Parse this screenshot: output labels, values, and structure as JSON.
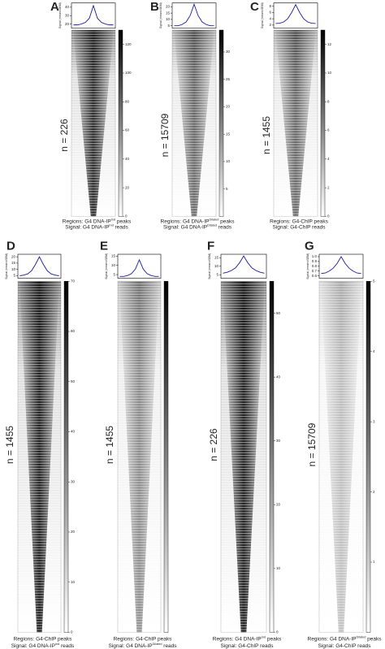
{
  "chart_data": [
    {
      "type": "line",
      "panel": "A",
      "n_label": "n = 226",
      "ylabel": "Signal (mean±SEM)",
      "color": "#1a1a9c",
      "values": [
        19,
        19,
        20,
        22,
        27,
        42,
        27,
        22,
        20,
        19,
        19
      ],
      "ylim": [
        15,
        45
      ],
      "yticks": [
        20,
        30,
        40
      ],
      "colorbar": {
        "clim": [
          0,
          130
        ],
        "ticks": [
          0,
          20,
          40,
          60,
          80,
          100,
          120
        ]
      },
      "regions": [
        "Regions: G4 DNA-IP",
        "Ind",
        " peaks"
      ],
      "signal": [
        "Signal: G4 DNA-IP",
        "Ind",
        " reads"
      ]
    },
    {
      "type": "line",
      "panel": "B",
      "n_label": "n = 15709",
      "ylabel": "Signal (mean±SEM)",
      "color": "#1a1a9c",
      "values": [
        5,
        5,
        6,
        8,
        13,
        22,
        13,
        8,
        6,
        5,
        5
      ],
      "ylim": [
        3,
        23
      ],
      "yticks": [
        5,
        10,
        15,
        20
      ],
      "colorbar": {
        "clim": [
          0,
          34
        ],
        "ticks": [
          5,
          10,
          15,
          20,
          25,
          30
        ]
      },
      "regions": [
        "Regions: G4 DNA-IP",
        "Dilated",
        " peaks"
      ],
      "signal": [
        "Signal: G4 DNA-IP",
        "Dilated",
        " reads"
      ]
    },
    {
      "type": "line",
      "panel": "C",
      "n_label": "n = 1455",
      "ylabel": "Signal (mean±SEM)",
      "color": "#1a1a9c",
      "values": [
        2.5,
        2.6,
        3,
        4,
        6,
        8.5,
        6,
        4,
        3,
        2.6,
        2.5
      ],
      "ylim": [
        1,
        9
      ],
      "yticks": [
        2,
        4,
        6,
        8
      ],
      "colorbar": {
        "clim": [
          0,
          13
        ],
        "ticks": [
          0,
          2,
          4,
          6,
          8,
          10,
          12
        ]
      },
      "regions": [
        "Regions: G4-ChIP peaks"
      ],
      "signal": [
        "Signal: G4-ChIP reads"
      ]
    },
    {
      "type": "line",
      "panel": "D",
      "n_label": "n = 1455",
      "ylabel": "Signal (mean±SEM)",
      "color": "#1a1a9c",
      "values": [
        5,
        5.5,
        6.5,
        9,
        14,
        20,
        14,
        9,
        6.5,
        5.5,
        5
      ],
      "ylim": [
        3,
        22
      ],
      "yticks": [
        5,
        10,
        15,
        20
      ],
      "colorbar": {
        "clim": [
          0,
          70
        ],
        "ticks": [
          0,
          10,
          20,
          30,
          40,
          50,
          60,
          70
        ]
      },
      "regions": [
        "Regions: G4-ChIP peaks"
      ],
      "signal": [
        "Signal: G4 DNA-IP",
        "Ind",
        " reads"
      ]
    },
    {
      "type": "line",
      "panel": "E",
      "n_label": "n = 1455",
      "ylabel": "Signal (mean±SEM)",
      "color": "#1a1a9c",
      "values": [
        4,
        4,
        4.5,
        5.5,
        8,
        13,
        8,
        5.5,
        4.5,
        4,
        4
      ],
      "ylim": [
        3,
        16
      ],
      "yticks": [
        5,
        10,
        15
      ],
      "regions": [
        "Regions: G4-ChIP peaks"
      ],
      "signal": [
        "Signal: G4 DNA-IP",
        "Dilated",
        " reads"
      ]
    },
    {
      "type": "line",
      "panel": "F",
      "n_label": "n = 226",
      "ylabel": "Signal (mean±SEM)",
      "color": "#1a1a9c",
      "values": [
        6,
        6.5,
        7.5,
        9,
        12,
        16,
        12,
        9,
        7.5,
        6.5,
        6
      ],
      "ylim": [
        3,
        17
      ],
      "yticks": [
        5,
        10,
        15
      ],
      "colorbar": {
        "clim": [
          0,
          55
        ],
        "ticks": [
          0,
          10,
          20,
          30,
          40,
          50
        ]
      },
      "regions": [
        "Regions: G4 DNA-IP",
        "Ind",
        " peaks"
      ],
      "signal": [
        "Signal: G4-ChIP reads"
      ]
    },
    {
      "type": "line",
      "panel": "G",
      "n_label": "n = 15709",
      "ylabel": "Signal (mean±SEM)",
      "color": "#1a1a9c",
      "values": [
        0.65,
        0.66,
        0.7,
        0.76,
        0.86,
        1.0,
        0.86,
        0.76,
        0.7,
        0.66,
        0.65
      ],
      "ylim": [
        0.55,
        1.05
      ],
      "yticks": [
        0.6,
        0.7,
        0.8,
        0.9,
        {
          "value": 1,
          "label": "1.0"
        }
      ],
      "colorbar": {
        "clim": [
          0,
          5
        ],
        "ticks": [
          1,
          2,
          3,
          4,
          5
        ]
      },
      "regions": [
        "Regions: G4 DNA-IP",
        "Dilated",
        " peaks"
      ],
      "signal": [
        "Signal: G4-ChIP reads"
      ]
    }
  ]
}
